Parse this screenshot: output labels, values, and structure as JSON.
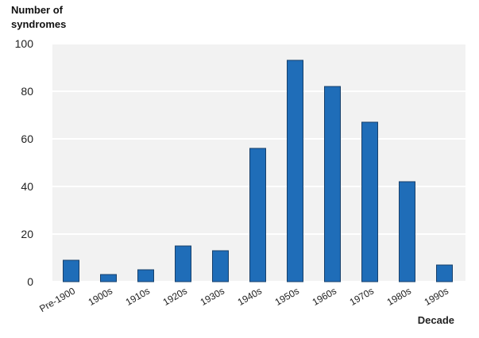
{
  "chart_data": {
    "type": "bar",
    "y_label": "Number of syndromes",
    "x_label": "Decade",
    "categories": [
      "Pre-1900",
      "1900s",
      "1910s",
      "1920s",
      "1930s",
      "1940s",
      "1950s",
      "1960s",
      "1970s",
      "1980s",
      "1990s"
    ],
    "values": [
      9,
      3,
      5,
      15,
      13,
      56,
      93,
      82,
      67,
      42,
      7
    ],
    "color": "#1f6db8",
    "ylim": [
      0,
      100
    ],
    "yticks": [
      0,
      20,
      40,
      60,
      80,
      100
    ],
    "grid": true
  }
}
